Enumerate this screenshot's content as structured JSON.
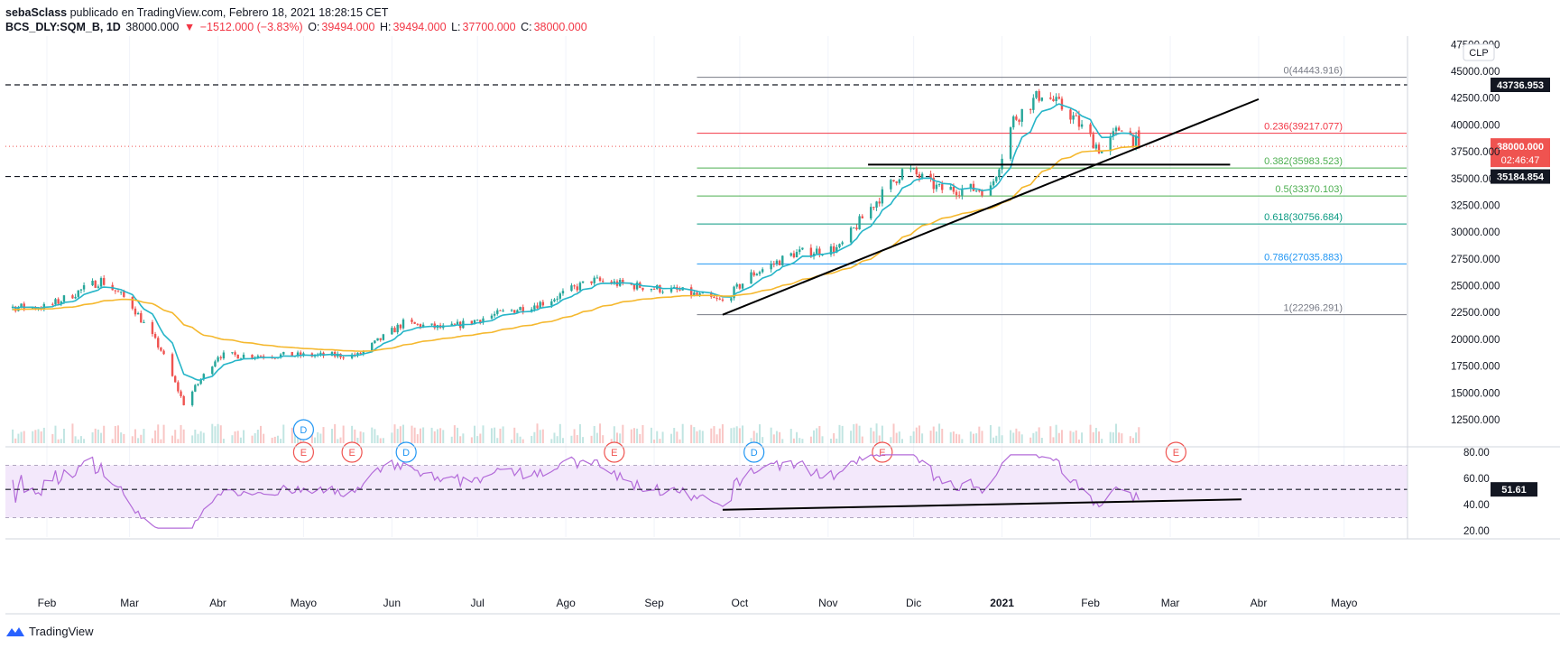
{
  "header": {
    "author": "sebaSclass",
    "published": "publicado en TradingView.com, Febrero 18, 2021 18:28:15 CET",
    "symbol": "BCS_DLY:SQM_B, 1D",
    "last": "38000.000",
    "change": "−1512.000 (−3.83%)",
    "o_label": "O:",
    "o": "39494.000",
    "h_label": "H:",
    "h": "39494.000",
    "l_label": "L:",
    "l": "37700.000",
    "c_label": "C:",
    "c": "38000.000"
  },
  "footer": {
    "brand": "TradingView"
  },
  "colors": {
    "up": "#26a69a",
    "down": "#ef5350",
    "ema_fast": "#26b5c8",
    "ema_slow": "#f5b82e",
    "rsi": "#b36bd9"
  },
  "chart_data": {
    "type": "line",
    "title": "BCS_DLY:SQM_B, 1D",
    "currency": "CLP",
    "x_tick_labels": [
      "Feb",
      "Mar",
      "Abr",
      "Mayo",
      "Jun",
      "Jul",
      "Ago",
      "Sep",
      "Oct",
      "Nov",
      "Dic",
      "2021",
      "Feb",
      "Mar",
      "Abr",
      "Mayo"
    ],
    "y_tick_labels": [
      "47500.000",
      "45000.000",
      "42500.000",
      "40000.000",
      "37500.000",
      "35000.000",
      "32500.000",
      "30000.000",
      "27500.000",
      "25000.000",
      "22500.000",
      "20000.000",
      "17500.000",
      "15000.000",
      "12500.000"
    ],
    "ylim": [
      11000,
      48000
    ],
    "price_approx": {
      "x": [
        "2020-02-01",
        "2020-02-20",
        "2020-03-01",
        "2020-03-12",
        "2020-03-20",
        "2020-04-01",
        "2020-04-20",
        "2020-05-10",
        "2020-05-20",
        "2020-06-05",
        "2020-06-20",
        "2020-07-10",
        "2020-07-25",
        "2020-08-10",
        "2020-08-25",
        "2020-09-10",
        "2020-09-25",
        "2020-10-05",
        "2020-10-20",
        "2020-11-05",
        "2020-11-15",
        "2020-11-28",
        "2020-12-10",
        "2020-12-28",
        "2021-01-05",
        "2021-01-15",
        "2021-01-25",
        "2021-02-05",
        "2021-02-12",
        "2021-02-18"
      ],
      "close": [
        23000,
        25500,
        23500,
        19000,
        14000,
        18500,
        18500,
        18500,
        18500,
        21500,
        21000,
        22500,
        23500,
        25500,
        25000,
        24500,
        23500,
        26000,
        28000,
        28500,
        32000,
        36000,
        34000,
        34000,
        40500,
        43000,
        41000,
        37500,
        40000,
        38000
      ]
    },
    "ema_fast_name": "",
    "ema_slow_name": "",
    "fibonacci": [
      {
        "label": "0(44443.916)",
        "value": 44443.916,
        "color": "#787b86"
      },
      {
        "label": "0.236(39217.077)",
        "value": 39217.077,
        "color": "#f23645"
      },
      {
        "label": "0.382(35983.523)",
        "value": 35983.523,
        "color": "#4caf50"
      },
      {
        "label": "0.5(33370.103)",
        "value": 33370.103,
        "color": "#4caf50"
      },
      {
        "label": "0.618(30756.684)",
        "value": 30756.684,
        "color": "#089981"
      },
      {
        "label": "0.786(27035.883)",
        "value": 27035.883,
        "color": "#2196f3"
      },
      {
        "label": "1(22296.291)",
        "value": 22296.291,
        "color": "#787b86"
      }
    ],
    "horizontal_levels": [
      {
        "label": "43736.953",
        "value": 43736.953
      },
      {
        "label": "35184.854",
        "value": 35184.854
      }
    ],
    "last_price": {
      "label": "38000.000",
      "value": 38000,
      "countdown": "02:46:47"
    },
    "events": [
      {
        "kind": "D",
        "date": "2020-05-01"
      },
      {
        "kind": "E",
        "date": "2020-05-01"
      },
      {
        "kind": "E",
        "date": "2020-05-18"
      },
      {
        "kind": "D",
        "date": "2020-06-06"
      },
      {
        "kind": "E",
        "date": "2020-08-18"
      },
      {
        "kind": "D",
        "date": "2020-10-06"
      },
      {
        "kind": "E",
        "date": "2020-11-20"
      },
      {
        "kind": "E",
        "date": "2021-03-03"
      }
    ],
    "rsi": {
      "y_tick_labels": [
        "80.00",
        "60.00",
        "40.00",
        "20.00"
      ],
      "upper_band": 70,
      "lower_band": 30,
      "ylim": [
        18,
        84
      ],
      "last": {
        "label": "51.61",
        "value": 51.61
      }
    }
  }
}
